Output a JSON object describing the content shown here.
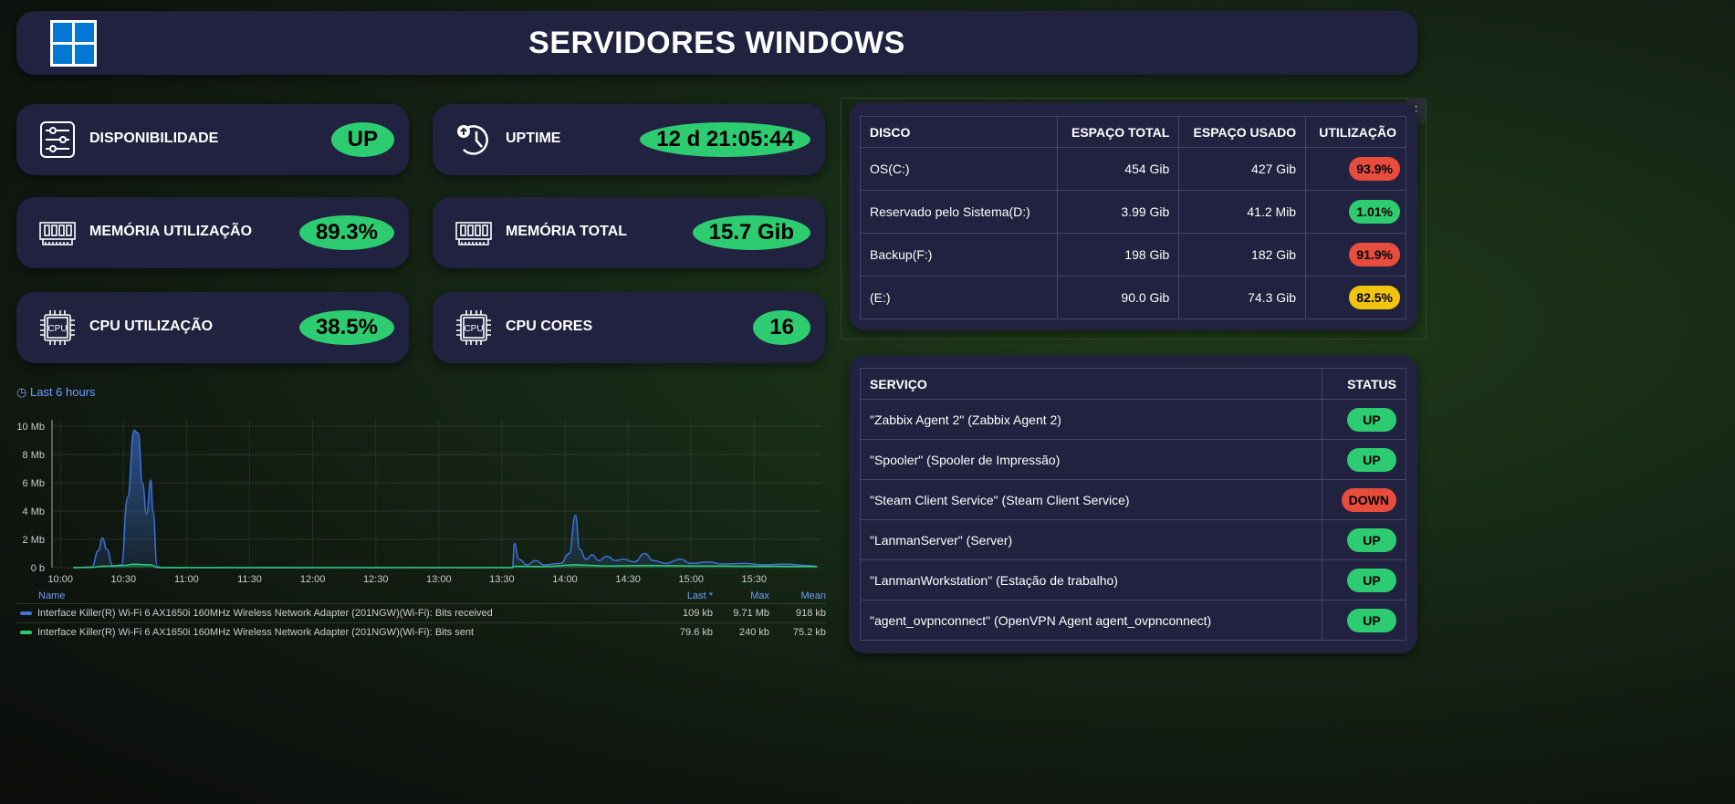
{
  "header": {
    "title": "SERVIDORES WINDOWS",
    "logo": "windows-logo"
  },
  "cards": [
    {
      "label": "DISPONIBILIDADE",
      "value": "UP",
      "icon": "sliders-icon"
    },
    {
      "label": "UPTIME",
      "value": "12 d 21:05:44",
      "icon": "clock-restore-icon"
    },
    {
      "label": "MEMÓRIA UTILIZAÇÃO",
      "value": "89.3%",
      "icon": "ram-icon"
    },
    {
      "label": "MEMÓRIA TOTAL",
      "value": "15.7 Gib",
      "icon": "ram-icon"
    },
    {
      "label": "CPU UTILIZAÇÃO",
      "value": "38.5%",
      "icon": "cpu-icon"
    },
    {
      "label": "CPU CORES",
      "value": "16",
      "icon": "cpu-icon"
    }
  ],
  "disks": {
    "headers": [
      "DISCO",
      "ESPAÇO TOTAL",
      "ESPAÇO USADO",
      "UTILIZAÇÃO"
    ],
    "rows": [
      {
        "name": "OS(C:)",
        "total": "454 Gib",
        "used": "427 Gib",
        "util": "93.9%",
        "color": "#e74c3c"
      },
      {
        "name": "Reservado pelo Sistema(D:)",
        "total": "3.99 Gib",
        "used": "41.2 Mib",
        "util": "1.01%",
        "color": "#2ecc71"
      },
      {
        "name": "Backup(F:)",
        "total": "198 Gib",
        "used": "182 Gib",
        "util": "91.9%",
        "color": "#e74c3c"
      },
      {
        "name": "(E:)",
        "total": "90.0 Gib",
        "used": "74.3 Gib",
        "util": "82.5%",
        "color": "#f1c40f"
      }
    ]
  },
  "services": {
    "headers": [
      "SERVIÇO",
      "STATUS"
    ],
    "rows": [
      {
        "name": "\"Zabbix Agent 2\" (Zabbix Agent 2)",
        "status": "UP",
        "color": "#2ecc71"
      },
      {
        "name": "\"Spooler\" (Spooler de Impressão)",
        "status": "UP",
        "color": "#2ecc71"
      },
      {
        "name": "\"Steam Client Service\" (Steam Client Service)",
        "status": "DOWN",
        "color": "#e74c3c"
      },
      {
        "name": "\"LanmanServer\" (Server)",
        "status": "UP",
        "color": "#2ecc71"
      },
      {
        "name": "\"LanmanWorkstation\" (Estação de trabalho)",
        "status": "UP",
        "color": "#2ecc71"
      },
      {
        "name": "\"agent_ovpnconnect\" (OpenVPN Agent agent_ovpnconnect)",
        "status": "UP",
        "color": "#2ecc71"
      }
    ]
  },
  "chart_data": {
    "type": "area",
    "time_range_label": "Last 6 hours",
    "y_ticks": [
      "0 b",
      "2 Mb",
      "4 Mb",
      "6 Mb",
      "8 Mb",
      "10 Mb"
    ],
    "ylim": [
      0,
      10.5
    ],
    "x_ticks": [
      "10:00",
      "10:30",
      "11:00",
      "11:30",
      "12:00",
      "12:30",
      "13:00",
      "13:30",
      "14:00",
      "14:30",
      "15:00",
      "15:30"
    ],
    "xlim": [
      "09:56",
      "16:02"
    ],
    "grid": true,
    "legend_headers": [
      "Name",
      "Last *",
      "Max",
      "Mean"
    ],
    "series": [
      {
        "name": "Interface Killer(R) Wi-Fi 6 AX1650i 160MHz Wireless Network Adapter (201NGW)(Wi-Fi): Bits received",
        "color": "#3d71d9",
        "last": "109 kb",
        "max": "9.71 Mb",
        "mean": "918 kb",
        "points": [
          [
            "10:06",
            0
          ],
          [
            "10:15",
            0.05
          ],
          [
            "10:18",
            1.2
          ],
          [
            "10:20",
            2.1
          ],
          [
            "10:22",
            1.3
          ],
          [
            "10:25",
            0.1
          ],
          [
            "10:29",
            0.2
          ],
          [
            "10:32",
            5
          ],
          [
            "10:35",
            9.7
          ],
          [
            "10:37",
            9.5
          ],
          [
            "10:39",
            6
          ],
          [
            "10:41",
            3.8
          ],
          [
            "10:43",
            6.2
          ],
          [
            "10:44",
            4
          ],
          [
            "10:46",
            0.1
          ],
          [
            "10:48",
            0
          ],
          [
            "13:35",
            0
          ],
          [
            "13:36",
            1.7
          ],
          [
            "13:38",
            0.6
          ],
          [
            "13:42",
            0.2
          ],
          [
            "13:46",
            0.5
          ],
          [
            "13:50",
            0.2
          ],
          [
            "13:58",
            0.3
          ],
          [
            "14:02",
            1.0
          ],
          [
            "14:05",
            3.7
          ],
          [
            "14:07",
            1.3
          ],
          [
            "14:10",
            0.6
          ],
          [
            "14:13",
            0.9
          ],
          [
            "14:16",
            0.5
          ],
          [
            "14:20",
            0.8
          ],
          [
            "14:24",
            0.5
          ],
          [
            "14:28",
            0.6
          ],
          [
            "14:33",
            0.4
          ],
          [
            "14:38",
            1.0
          ],
          [
            "14:42",
            0.5
          ],
          [
            "14:48",
            0.3
          ],
          [
            "14:55",
            0.6
          ],
          [
            "15:00",
            0.3
          ],
          [
            "15:08",
            0.4
          ],
          [
            "15:15",
            0.25
          ],
          [
            "15:25",
            0.3
          ],
          [
            "15:35",
            0.2
          ],
          [
            "15:45",
            0.25
          ],
          [
            "15:55",
            0.15
          ],
          [
            "16:00",
            0.1
          ]
        ]
      },
      {
        "name": "Interface Killer(R) Wi-Fi 6 AX1650i 160MHz Wireless Network Adapter (201NGW)(Wi-Fi): Bits sent",
        "color": "#2ecc71",
        "last": "79.6 kb",
        "max": "240 kb",
        "mean": "75.2 kb",
        "points": [
          [
            "10:06",
            0
          ],
          [
            "10:15",
            0.02
          ],
          [
            "10:20",
            0.1
          ],
          [
            "10:30",
            0.15
          ],
          [
            "10:35",
            0.24
          ],
          [
            "10:43",
            0.2
          ],
          [
            "10:46",
            0.02
          ],
          [
            "10:48",
            0
          ],
          [
            "13:35",
            0
          ],
          [
            "13:36",
            0.1
          ],
          [
            "13:50",
            0.08
          ],
          [
            "14:05",
            0.2
          ],
          [
            "14:20",
            0.12
          ],
          [
            "14:40",
            0.15
          ],
          [
            "15:00",
            0.12
          ],
          [
            "15:30",
            0.1
          ],
          [
            "16:00",
            0.08
          ]
        ]
      }
    ]
  }
}
